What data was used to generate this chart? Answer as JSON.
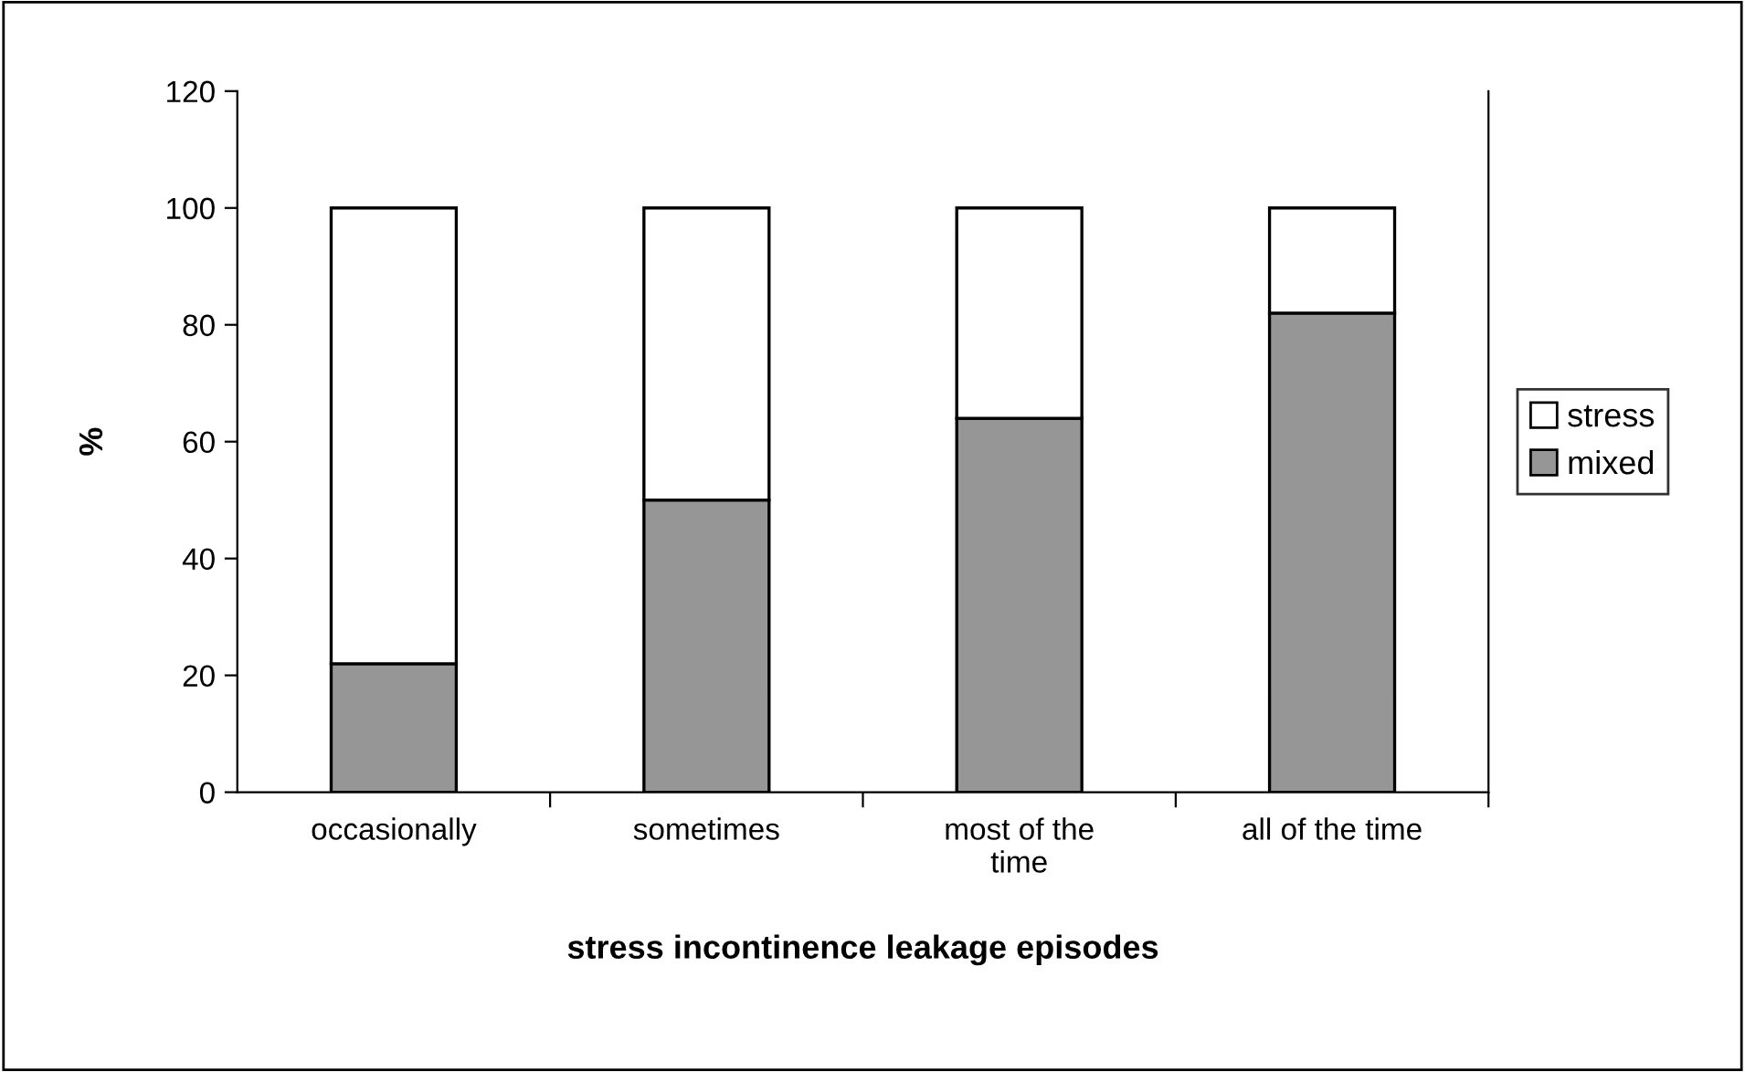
{
  "chart_data": {
    "type": "bar",
    "stacked": true,
    "xlabel": "stress incontinence leakage episodes",
    "ylabel": "%",
    "categories": [
      "occasionally",
      "sometimes",
      "most of the\ntime",
      "all of the time"
    ],
    "series": [
      {
        "name": "mixed",
        "color": "#969696",
        "values": [
          22,
          50,
          64,
          82
        ]
      },
      {
        "name": "stress",
        "color": "#ffffff",
        "values": [
          78,
          50,
          36,
          18
        ]
      }
    ],
    "ylim": [
      0,
      120
    ],
    "yticks": [
      0,
      20,
      40,
      60,
      80,
      100,
      120
    ],
    "grid": false,
    "legend": "right"
  }
}
